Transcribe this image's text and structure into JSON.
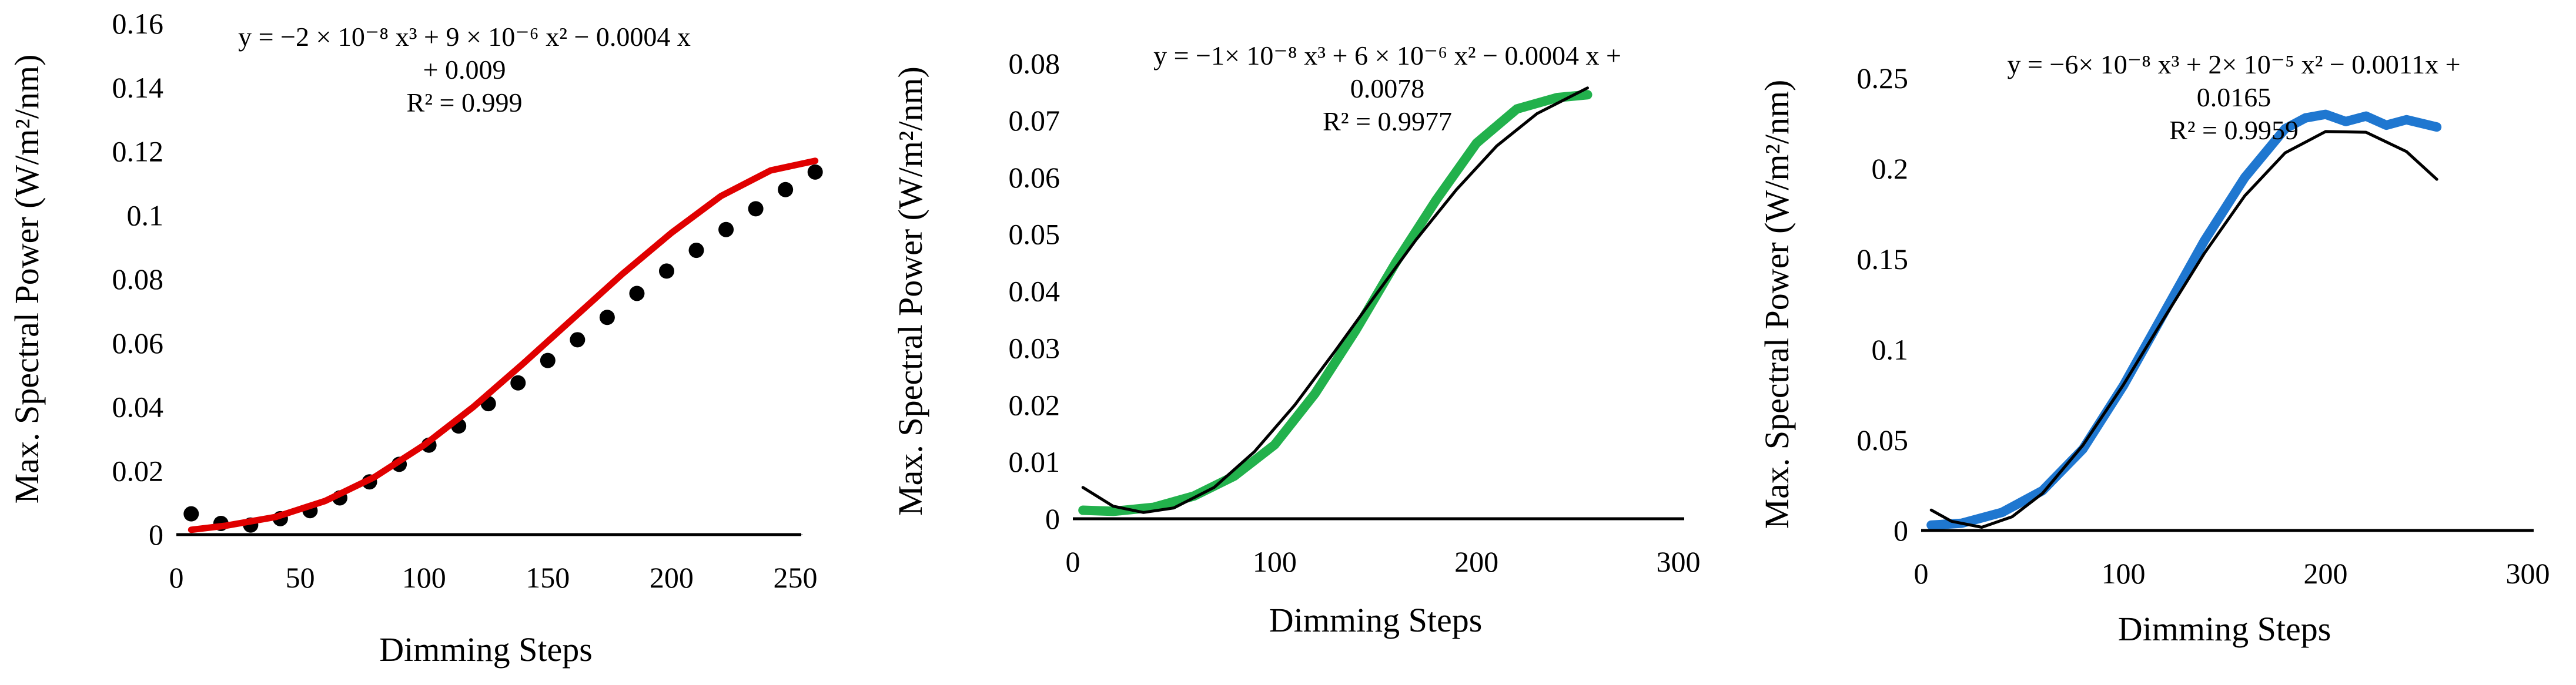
{
  "chart_data": [
    {
      "type": "scatter",
      "xlabel": "Dimming Steps",
      "ylabel": "Max. Spectral Power (W/m²/nm)",
      "xlim": [
        0,
        250
      ],
      "ylim": [
        0,
        0.16
      ],
      "xticks": [
        "0",
        "50",
        "100",
        "150",
        "200",
        "250"
      ],
      "yticks": [
        "0",
        "0.02",
        "0.04",
        "0.06",
        "0.08",
        "0.1",
        "0.12",
        "0.14",
        "0.16"
      ],
      "equation_lines": [
        "y = −2 × 10⁻⁸ x³ + 9 × 10⁻⁶ x² − 0.0004 x",
        "+ 0.009",
        "R² = 0.999"
      ],
      "grid": false,
      "series": [
        {
          "color": "#000000",
          "marker": "circle",
          "x": [
            6,
            18,
            30,
            42,
            54,
            66,
            78,
            90,
            102,
            114,
            126,
            138,
            150,
            162,
            174,
            186,
            198,
            210,
            222,
            234,
            246,
            258
          ],
          "y": [
            0.0065,
            0.0035,
            0.003,
            0.005,
            0.0075,
            0.0115,
            0.0165,
            0.022,
            0.028,
            0.034,
            0.041,
            0.0475,
            0.0545,
            0.061,
            0.068,
            0.0755,
            0.0825,
            0.089,
            0.0955,
            0.102,
            0.108,
            0.1135
          ]
        },
        {
          "color": "#e00000",
          "marker": "line",
          "x": [
            6,
            20,
            40,
            60,
            80,
            100,
            120,
            140,
            160,
            180,
            200,
            220,
            240,
            258
          ],
          "y": [
            0.0015,
            0.0028,
            0.0055,
            0.0105,
            0.018,
            0.028,
            0.04,
            0.0535,
            0.0675,
            0.0815,
            0.0945,
            0.106,
            0.114,
            0.117
          ]
        }
      ]
    },
    {
      "type": "scatter",
      "xlabel": "Dimming Steps",
      "ylabel": "Max. Spectral Power (W/m²/nm)",
      "xlim": [
        0,
        300
      ],
      "ylim": [
        0,
        0.08
      ],
      "xticks": [
        "0",
        "100",
        "200",
        "300"
      ],
      "yticks": [
        "0",
        "0.01",
        "0.02",
        "0.03",
        "0.04",
        "0.05",
        "0.06",
        "0.07",
        "0.08"
      ],
      "equation_lines": [
        "y = −1× 10⁻⁸ x³ + 6 × 10⁻⁶ x² − 0.0004 x +",
        "0.0078",
        "R² = 0.9977"
      ],
      "grid": false,
      "series": [
        {
          "color": "#22b14c",
          "marker": "thick-line",
          "x": [
            5,
            20,
            40,
            60,
            80,
            100,
            120,
            140,
            160,
            180,
            200,
            220,
            240,
            255
          ],
          "y": [
            0.0015,
            0.0013,
            0.002,
            0.004,
            0.0075,
            0.013,
            0.022,
            0.033,
            0.045,
            0.056,
            0.066,
            0.072,
            0.074,
            0.0745
          ]
        },
        {
          "color": "#000000",
          "marker": "line",
          "x": [
            5,
            20,
            35,
            50,
            70,
            90,
            110,
            130,
            150,
            170,
            190,
            210,
            230,
            255
          ],
          "y": [
            0.0055,
            0.0022,
            0.0011,
            0.0019,
            0.0055,
            0.0118,
            0.02,
            0.0295,
            0.0393,
            0.049,
            0.0578,
            0.0655,
            0.0712,
            0.0757
          ]
        }
      ]
    },
    {
      "type": "scatter",
      "xlabel": "Dimming Steps",
      "ylabel": "Max. Spectral Power (W/m²/nm)",
      "xlim": [
        0,
        300
      ],
      "ylim": [
        0,
        0.25
      ],
      "xticks": [
        "0",
        "100",
        "200",
        "300"
      ],
      "yticks": [
        "0",
        "0.05",
        "0.1",
        "0.15",
        "0.2",
        "0.25"
      ],
      "equation_lines": [
        "y = −6× 10⁻⁸ x³ + 2× 10⁻⁵ x² − 0.0011x +",
        "0.0165",
        "R² = 0.9959"
      ],
      "grid": false,
      "series": [
        {
          "color": "#1f77d0",
          "marker": "thick-line",
          "x": [
            5,
            20,
            40,
            60,
            80,
            100,
            120,
            140,
            160,
            180,
            190,
            200,
            210,
            220,
            230,
            240,
            255
          ],
          "y": [
            0.003,
            0.004,
            0.01,
            0.022,
            0.045,
            0.08,
            0.12,
            0.16,
            0.195,
            0.222,
            0.228,
            0.23,
            0.226,
            0.229,
            0.224,
            0.227,
            0.223
          ]
        },
        {
          "color": "#000000",
          "marker": "line",
          "x": [
            5,
            15,
            30,
            45,
            60,
            80,
            100,
            120,
            140,
            160,
            180,
            200,
            220,
            240,
            255
          ],
          "y": [
            0.0113,
            0.0051,
            0.0018,
            0.0076,
            0.0205,
            0.0471,
            0.0805,
            0.1171,
            0.1531,
            0.1849,
            0.2087,
            0.2205,
            0.2201,
            0.2094,
            0.1941
          ]
        }
      ]
    }
  ]
}
